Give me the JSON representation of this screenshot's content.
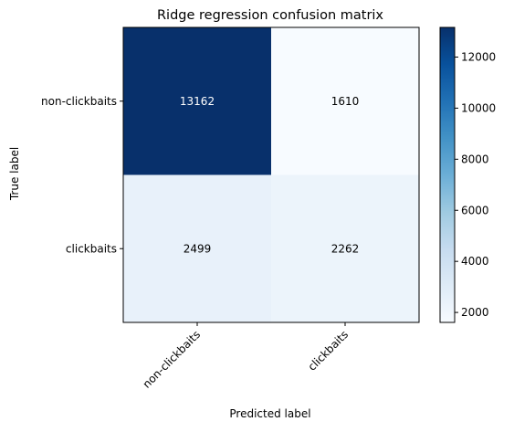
{
  "chart_data": {
    "type": "heatmap",
    "title": "Ridge regression confusion matrix",
    "xlabel": "Predicted label",
    "ylabel": "True label",
    "x_categories": [
      "non-clickbaits",
      "clickbaits"
    ],
    "y_categories": [
      "non-clickbaits",
      "clickbaits"
    ],
    "values": [
      [
        13162,
        1610
      ],
      [
        2499,
        2262
      ]
    ],
    "colormap": "Blues",
    "value_range": [
      1610,
      13162
    ],
    "colorbar_ticks": [
      2000,
      4000,
      6000,
      8000,
      10000,
      12000
    ],
    "grid": false
  },
  "colors": {
    "cell_text_dark": "#000000",
    "cell_text_light": "#ffffff",
    "axis": "#000000"
  }
}
